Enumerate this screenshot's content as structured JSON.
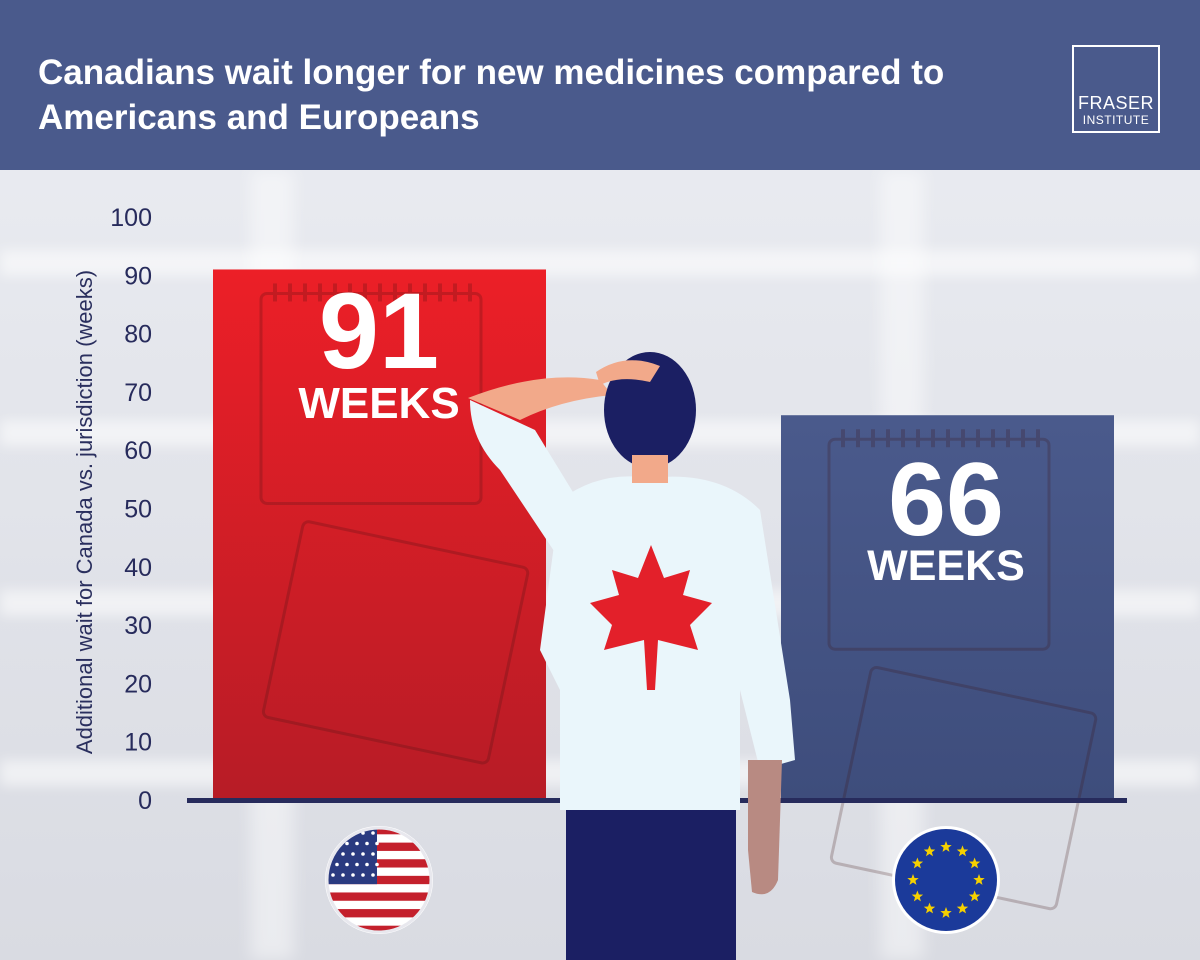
{
  "header": {
    "title": "Canadians wait longer for new medicines compared to Americans and Europeans",
    "logo_line1": "FRASER",
    "logo_line2": "INSTITUTE"
  },
  "chart_data": {
    "type": "bar",
    "categories": [
      "United States",
      "European Union"
    ],
    "values": [
      91,
      66
    ],
    "value_labels": [
      "91",
      "66"
    ],
    "unit_label": "WEEKS",
    "title": "Canadians wait longer for new medicines compared to Americans and Europeans",
    "xlabel": "",
    "ylabel": "Additional wait for Canada vs. jurisdiction (weeks)",
    "ylim": [
      0,
      100
    ],
    "yticks": [
      0,
      10,
      20,
      30,
      40,
      50,
      60,
      70,
      80,
      90,
      100
    ],
    "grid": false,
    "legend": "none",
    "category_icons": [
      "us-flag-icon",
      "eu-flag-icon"
    ],
    "colors": [
      "#e3202a",
      "#4a5a8c"
    ]
  },
  "colors": {
    "header_bg": "#4a5a8c",
    "axis": "#272b5c",
    "us_bar": "#e3202a",
    "eu_bar": "#4a5a8c"
  }
}
